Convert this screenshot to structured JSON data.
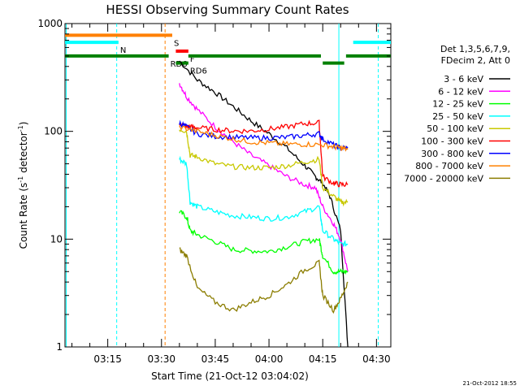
{
  "chart_data": {
    "type": "line",
    "title": "HESSI Observing Summary Count Rates",
    "xlabel": "Start Time (21-Oct-12 03:04:02)",
    "ylabel_main": "Count Rate (s",
    "ylabel_sup1": "-1",
    "ylabel_mid": " detector",
    "ylabel_sup2": "-1",
    "ylabel_end": ")",
    "y_scale": "log",
    "ylim": [
      1,
      1000
    ],
    "xlim_minutes": [
      3.0667,
      94.0
    ],
    "x_ticks": [
      {
        "m": 15,
        "label": "03:15"
      },
      {
        "m": 30,
        "label": "03:30"
      },
      {
        "m": 45,
        "label": "03:45"
      },
      {
        "m": 60,
        "label": "04:00"
      },
      {
        "m": 75,
        "label": "04:15"
      },
      {
        "m": 90,
        "label": "04:30"
      }
    ],
    "y_ticks": [
      {
        "v": 1,
        "label": "1"
      },
      {
        "v": 10,
        "label": "10"
      },
      {
        "v": 100,
        "label": "100"
      },
      {
        "v": 1000,
        "label": "1000"
      }
    ],
    "legend": {
      "header1": "Det 1,3,5,6,7,9,",
      "header2": "FDecim 2, Att 0",
      "placement": "right"
    },
    "series": [
      {
        "name": "3 - 6 keV",
        "color": "#000000",
        "x": [
          35,
          40,
          45,
          50,
          55,
          60,
          65,
          70,
          73,
          75,
          77,
          80,
          82
        ],
        "y": [
          450,
          300,
          230,
          170,
          125,
          95,
          70,
          48,
          38,
          33,
          25,
          12,
          1
        ]
      },
      {
        "name": "6 - 12 keV",
        "color": "#ff00ff",
        "x": [
          35,
          37,
          40,
          45,
          50,
          55,
          60,
          65,
          70,
          73,
          75,
          78,
          80,
          82
        ],
        "y": [
          280,
          210,
          160,
          110,
          80,
          60,
          48,
          38,
          32,
          30,
          20,
          14,
          10,
          5
        ]
      },
      {
        "name": "12 - 25 keV",
        "color": "#00ff00",
        "x": [
          35,
          37,
          38,
          40,
          45,
          50,
          55,
          60,
          65,
          70,
          74,
          75,
          78,
          80,
          82
        ],
        "y": [
          18,
          16,
          12,
          11,
          9.5,
          8,
          7.8,
          7.7,
          8.5,
          9.5,
          10,
          7,
          5,
          5,
          5
        ]
      },
      {
        "name": "25 - 50 keV",
        "color": "#00ffff",
        "x": [
          35,
          37,
          38,
          40,
          45,
          50,
          55,
          60,
          65,
          70,
          74,
          75,
          78,
          80,
          82
        ],
        "y": [
          55,
          50,
          22,
          20,
          18,
          16.5,
          16,
          15.5,
          16,
          18,
          20,
          12,
          10,
          9,
          9
        ]
      },
      {
        "name": "50 - 100 keV",
        "color": "#c8c800",
        "x": [
          35,
          37,
          38,
          40,
          45,
          50,
          55,
          60,
          65,
          70,
          74,
          75,
          78,
          80,
          82
        ],
        "y": [
          105,
          100,
          60,
          58,
          50,
          47,
          46,
          46,
          48,
          52,
          55,
          30,
          25,
          22,
          22
        ]
      },
      {
        "name": "100 - 300 keV",
        "color": "#ff0000",
        "x": [
          35,
          37,
          38,
          40,
          45,
          50,
          55,
          60,
          65,
          70,
          74,
          75,
          78,
          80,
          82
        ],
        "y": [
          120,
          110,
          110,
          108,
          104,
          101,
          101,
          105,
          110,
          118,
          120,
          38,
          33,
          32,
          32
        ]
      },
      {
        "name": "300 - 800 keV",
        "color": "#0000ff",
        "x": [
          35,
          37,
          40,
          45,
          50,
          55,
          60,
          65,
          70,
          74,
          75,
          78,
          80,
          82
        ],
        "y": [
          120,
          110,
          95,
          90,
          88,
          87,
          87,
          88,
          92,
          95,
          85,
          75,
          70,
          70
        ]
      },
      {
        "name": "800 - 7000 keV",
        "color": "#ff8000",
        "x": [
          35,
          40,
          45,
          50,
          55,
          60,
          65,
          70,
          75,
          78,
          80,
          82
        ],
        "y": [
          110,
          100,
          92,
          85,
          80,
          78,
          76,
          76,
          75,
          72,
          70,
          68
        ]
      },
      {
        "name": "7000 - 20000 keV",
        "color": "#8b7d00",
        "x": [
          35,
          37,
          40,
          45,
          50,
          55,
          60,
          65,
          70,
          74,
          75,
          78,
          80,
          82
        ],
        "y": [
          8,
          7,
          3.5,
          2.6,
          2.2,
          2.6,
          3,
          3.8,
          5.2,
          6,
          3,
          2.2,
          2.8,
          4
        ]
      }
    ],
    "flag_segments": [
      {
        "label": "S",
        "color": "#ff8000",
        "x": [
          3.0667,
          33
        ],
        "y": 780
      },
      {
        "label": "N",
        "color": "#00ffff",
        "x": [
          3.0667,
          18
        ],
        "y": 670
      },
      {
        "label": "",
        "color": "#00ffff",
        "x": [
          83.5,
          94
        ],
        "y": 670
      },
      {
        "label": "F",
        "color": "#ff0000",
        "x": [
          34,
          37.5
        ],
        "y": 555
      },
      {
        "label": "RD6",
        "color": "#008000",
        "x": [
          3.0667,
          32
        ],
        "y": 500
      },
      {
        "label": "RD6",
        "color": "#008000",
        "x": [
          34,
          37.5
        ],
        "y": 430
      },
      {
        "label": "",
        "color": "#008000",
        "x": [
          37.5,
          74.5
        ],
        "y": 500
      },
      {
        "label": "",
        "color": "#008000",
        "x": [
          75,
          81
        ],
        "y": 430
      },
      {
        "label": "",
        "color": "#008000",
        "x": [
          81.5,
          94
        ],
        "y": 500
      }
    ],
    "vertical_lines": [
      {
        "m": 3.4,
        "color": "#00ffff",
        "style": "solid"
      },
      {
        "m": 17.5,
        "color": "#00ffff",
        "style": "dashed"
      },
      {
        "m": 31,
        "color": "#ff8000",
        "style": "dashed"
      },
      {
        "m": 79.5,
        "color": "#00ffff",
        "style": "solid"
      },
      {
        "m": 90.5,
        "color": "#00ffff",
        "style": "dashed"
      }
    ],
    "timestamp": "21-Oct-2012 18:55"
  }
}
